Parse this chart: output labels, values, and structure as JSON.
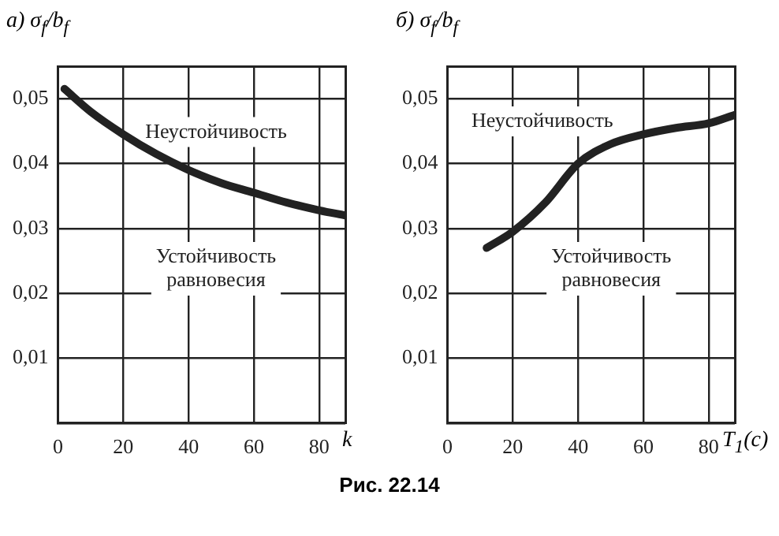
{
  "chart_data": [
    {
      "type": "line",
      "title": "а)",
      "ylabel": "σ$_{f}$/b$_{f}$",
      "xlabel": "k",
      "xlim": [
        0,
        88
      ],
      "xticks": [
        0,
        20,
        40,
        60,
        80
      ],
      "ylim": [
        0,
        0.055
      ],
      "yticks": [
        {
          "value": 0,
          "label": null
        },
        {
          "value": 0.01,
          "label": "0,01"
        },
        {
          "value": 0.02,
          "label": "0,02"
        },
        {
          "value": 0.03,
          "label": "0,03"
        },
        {
          "value": 0.04,
          "label": "0,04"
        },
        {
          "value": 0.05,
          "label": "0,05"
        }
      ],
      "grid": true,
      "legend": false,
      "marker": "none",
      "line_style": "solid",
      "series": [
        {
          "color": "#222222",
          "x": [
            2,
            10,
            20,
            30,
            40,
            50,
            60,
            70,
            80,
            88
          ],
          "values": [
            0.0515,
            0.048,
            0.0445,
            0.0415,
            0.039,
            0.037,
            0.0355,
            0.034,
            0.0328,
            0.032
          ]
        }
      ],
      "annotations": [
        "Неустойчивость",
        "Устойчивость\nравновесия"
      ]
    },
    {
      "type": "line",
      "title": "б)",
      "ylabel": "σ$_{f}$/b$_{f}$",
      "xlabel": "T$_{1}$(c)",
      "xlim": [
        0,
        88
      ],
      "xticks": [
        0,
        20,
        40,
        60,
        80
      ],
      "ylim": [
        0,
        0.055
      ],
      "yticks": [
        {
          "value": 0,
          "label": null
        },
        {
          "value": 0.01,
          "label": "0,01"
        },
        {
          "value": 0.02,
          "label": "0,02"
        },
        {
          "value": 0.03,
          "label": "0,03"
        },
        {
          "value": 0.04,
          "label": "0,04"
        },
        {
          "value": 0.05,
          "label": "0,05"
        }
      ],
      "grid": true,
      "legend": false,
      "marker": "none",
      "line_style": "solid",
      "series": [
        {
          "color": "#222222",
          "x": [
            12,
            20,
            30,
            40,
            50,
            60,
            70,
            80,
            88
          ],
          "values": [
            0.027,
            0.0295,
            0.034,
            0.04,
            0.043,
            0.0445,
            0.0455,
            0.0462,
            0.0475
          ]
        }
      ],
      "annotations": [
        "Неустойчивость",
        "Устойчивость\nравновесия",
        "Рис. 22.14"
      ]
    }
  ]
}
